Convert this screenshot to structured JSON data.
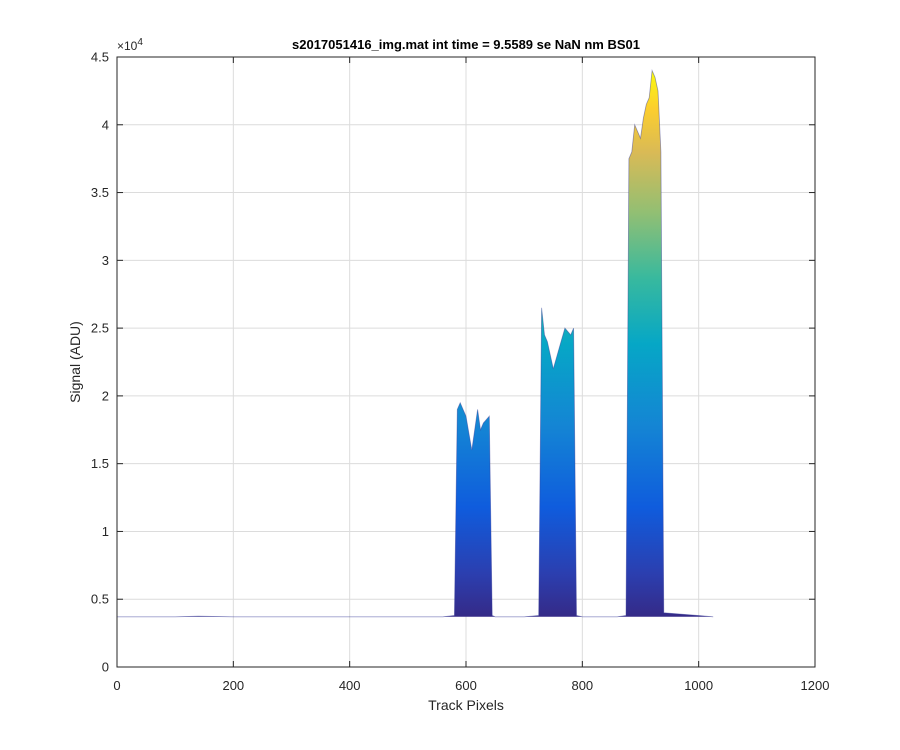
{
  "chart_data": {
    "type": "area",
    "title": "s2017051416_img.mat int time = 9.5589 se  NaN nm BS01",
    "xlabel": "Track Pixels",
    "ylabel": "Signal (ADU)",
    "xlim": [
      0,
      1200
    ],
    "ylim": [
      0,
      45000
    ],
    "x_ticks": [
      0,
      200,
      400,
      600,
      800,
      1000,
      1200
    ],
    "x_tick_labels": [
      "0",
      "200",
      "400",
      "600",
      "800",
      "1000",
      "1200"
    ],
    "y_ticks": [
      0,
      5000,
      10000,
      15000,
      20000,
      25000,
      30000,
      35000,
      40000,
      45000
    ],
    "y_tick_labels": [
      "0",
      "0.5",
      "1",
      "1.5",
      "2",
      "2.5",
      "3",
      "3.5",
      "4",
      "4.5"
    ],
    "y_exponent_label": "×10",
    "y_exponent_power": "4",
    "grid": true,
    "colormap": "parula",
    "baseline": 3700,
    "series": [
      {
        "x": [
          0,
          100,
          140,
          200,
          400,
          560,
          580,
          585,
          590,
          600,
          610,
          620,
          625,
          630,
          640,
          645,
          650,
          700,
          725,
          730,
          735,
          740,
          750,
          760,
          770,
          780,
          785,
          790,
          800,
          860,
          875,
          880,
          885,
          890,
          900,
          905,
          910,
          915,
          920,
          925,
          930,
          935,
          940,
          1000,
          1025
        ],
        "y": [
          3700,
          3700,
          3750,
          3700,
          3700,
          3700,
          3800,
          19000,
          19500,
          18500,
          16000,
          19000,
          17500,
          18000,
          18500,
          3800,
          3700,
          3700,
          3800,
          26500,
          24500,
          24000,
          22000,
          23500,
          25000,
          24500,
          25000,
          3800,
          3700,
          3700,
          3800,
          37500,
          38000,
          40000,
          39000,
          40500,
          41500,
          42000,
          44000,
          43500,
          42500,
          38000,
          4000,
          3800,
          3700
        ]
      }
    ]
  }
}
